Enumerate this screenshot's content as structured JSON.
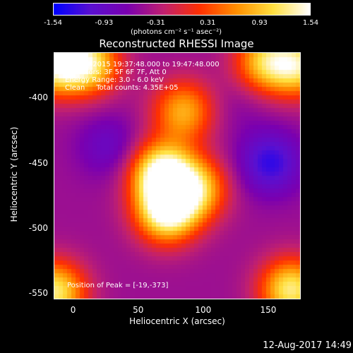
{
  "chart_data": {
    "type": "heatmap",
    "title": "Reconstructed RHESSI Image",
    "xlabel": "Heliocentric X (arcsec)",
    "ylabel": "Heliocentric Y (arcsec)",
    "xlim": [
      -15,
      175
    ],
    "ylim": [
      -555,
      -365
    ],
    "x_ticks": [
      "0",
      "50",
      "100",
      "150"
    ],
    "y_ticks": [
      "-400",
      "-450",
      "-500",
      "-550"
    ],
    "colorbar": {
      "ticks": [
        "-1.54",
        "-0.93",
        "-0.31",
        "0.31",
        "0.93",
        "1.54"
      ],
      "label": "(photons cm⁻² s⁻¹ asec⁻²)",
      "range": [
        -1.54,
        1.54
      ],
      "colors": [
        "#0000ff",
        "#5a10d0",
        "#7a00b0",
        "#c02070",
        "#ff3000",
        "#ff9000",
        "#ffe040",
        "#ffffff"
      ]
    },
    "annotations": {
      "time": "23-Aug-2015 19:37:48.000 to 19:47:48.000",
      "detectors": "Detectors: 3F 5F 6F 7F, Att 0",
      "energy": "Energy Range: 3.0 - 6.0 keV",
      "clean": "Clean     Total counts: 4.35E+05",
      "peak": "Position of Peak = [-19,-373]"
    },
    "features": [
      {
        "x": 68,
        "y": -458,
        "value": 1.54
      },
      {
        "x": 72,
        "y": -488,
        "value": 1.5
      },
      {
        "x": 85,
        "y": -410,
        "value": 0.8
      },
      {
        "x": 95,
        "y": -470,
        "value": 0.9
      },
      {
        "x": -15,
        "y": -373,
        "value": 1.3
      },
      {
        "x": 12,
        "y": -373,
        "value": 1.1
      },
      {
        "x": 175,
        "y": -375,
        "value": 1.0
      },
      {
        "x": 148,
        "y": -372,
        "value": 0.9
      },
      {
        "x": -15,
        "y": -550,
        "value": 1.25
      },
      {
        "x": 168,
        "y": -548,
        "value": 1.25
      },
      {
        "x": 27,
        "y": -437,
        "value": -0.9
      },
      {
        "x": 152,
        "y": -450,
        "value": -1.3
      },
      {
        "x": 128,
        "y": -405,
        "value": -0.6
      }
    ]
  },
  "footer": {
    "timestamp": "12-Aug-2017 14:49"
  }
}
